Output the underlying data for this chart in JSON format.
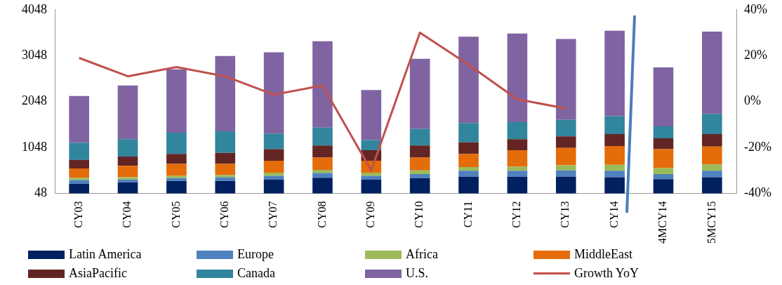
{
  "chart_data": {
    "type": "bar",
    "stacked": true,
    "categories": [
      "CY03",
      "CY04",
      "CY05",
      "CY06",
      "CY07",
      "CY08",
      "CY09",
      "CY10",
      "CY11",
      "CY12",
      "CY13",
      "CY14",
      "4MCY14",
      "5MCY15"
    ],
    "series": [
      {
        "name": "Latin America",
        "color": "#002060",
        "values": [
          260,
          290,
          320,
          320,
          350,
          390,
          350,
          380,
          410,
          410,
          410,
          400,
          360,
          400
        ]
      },
      {
        "name": "Europe",
        "color": "#4f81bd",
        "values": [
          80,
          60,
          60,
          80,
          80,
          100,
          80,
          90,
          130,
          130,
          140,
          140,
          110,
          140
        ]
      },
      {
        "name": "Africa",
        "color": "#9bbb59",
        "values": [
          50,
          50,
          50,
          50,
          70,
          70,
          70,
          80,
          80,
          90,
          110,
          130,
          130,
          140
        ]
      },
      {
        "name": "MiddleEast",
        "color": "#e46c0a",
        "values": [
          200,
          250,
          260,
          240,
          260,
          270,
          260,
          280,
          290,
          360,
          380,
          410,
          410,
          390
        ]
      },
      {
        "name": "AsiaPacific",
        "color": "#632523",
        "values": [
          190,
          200,
          220,
          240,
          250,
          260,
          230,
          260,
          250,
          240,
          250,
          260,
          240,
          270
        ]
      },
      {
        "name": "Canada",
        "color": "#31859c",
        "values": [
          370,
          380,
          460,
          470,
          340,
          390,
          220,
          360,
          420,
          370,
          360,
          390,
          260,
          440
        ]
      },
      {
        "name": "U.S.",
        "color": "#8064a2",
        "values": [
          1020,
          1170,
          1380,
          1640,
          1770,
          1880,
          1090,
          1530,
          1880,
          1930,
          1760,
          1860,
          1280,
          1790
        ]
      },
      {
        "name": "Growth YoY",
        "type": "line",
        "axis": "y2",
        "color": "#c0504d",
        "values": [
          19,
          11,
          15,
          11,
          3,
          7,
          -30,
          30,
          16,
          1,
          -3,
          null,
          null,
          null
        ]
      }
    ],
    "ylim": [
      48,
      4048
    ],
    "yticks": [
      48,
      1048,
      2048,
      3048,
      4048
    ],
    "y2lim": [
      -40,
      40
    ],
    "y2ticks": [
      {
        "value": -40,
        "label": "-40%"
      },
      {
        "value": -20,
        "label": "-20%"
      },
      {
        "value": 0,
        "label": "0%"
      },
      {
        "value": 20,
        "label": "20%"
      },
      {
        "value": 40,
        "label": "40%"
      }
    ],
    "grid": false,
    "legend": "bottom",
    "marker": "none",
    "line_style": "solid"
  }
}
